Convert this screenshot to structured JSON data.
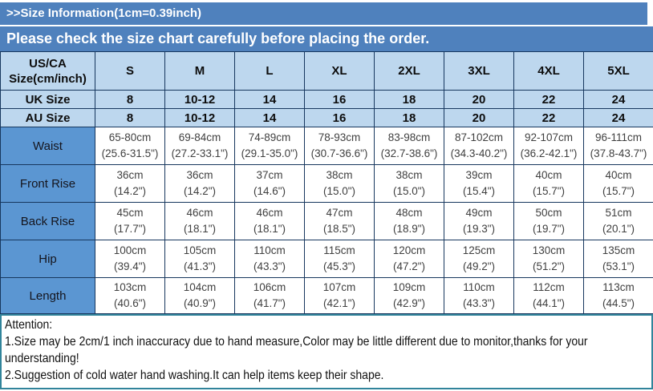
{
  "banner": {
    "title": ">>Size Information(1cm=0.39inch)",
    "subtitle": "Please check the size chart carefully before placing the order."
  },
  "table": {
    "corner_header": [
      "US/CA",
      "Size(cm/inch)"
    ],
    "size_headers": [
      "S",
      "M",
      "L",
      "XL",
      "2XL",
      "3XL",
      "4XL",
      "5XL"
    ],
    "size_rows": [
      {
        "label": "UK Size",
        "values": [
          "8",
          "10-12",
          "14",
          "16",
          "18",
          "20",
          "22",
          "24"
        ]
      },
      {
        "label": "AU Size",
        "values": [
          "8",
          "10-12",
          "14",
          "16",
          "18",
          "20",
          "22",
          "24"
        ]
      }
    ],
    "measurement_rows": [
      {
        "label": "Waist",
        "cm": [
          "65-80cm",
          "69-84cm",
          "74-89cm",
          "78-93cm",
          "83-98cm",
          "87-102cm",
          "92-107cm",
          "96-111cm"
        ],
        "inch": [
          "(25.6-31.5\")",
          "(27.2-33.1\")",
          "(29.1-35.0\")",
          "(30.7-36.6\")",
          "(32.7-38.6\")",
          "(34.3-40.2\")",
          "(36.2-42.1\")",
          "(37.8-43.7\")"
        ]
      },
      {
        "label": "Front Rise",
        "cm": [
          "36cm",
          "36cm",
          "37cm",
          "38cm",
          "38cm",
          "39cm",
          "40cm",
          "40cm"
        ],
        "inch": [
          "(14.2\")",
          "(14.2\")",
          "(14.6\")",
          "(15.0\")",
          "(15.0\")",
          "(15.4\")",
          "(15.7\")",
          "(15.7\")"
        ]
      },
      {
        "label": "Back Rise",
        "cm": [
          "45cm",
          "46cm",
          "46cm",
          "47cm",
          "48cm",
          "49cm",
          "50cm",
          "51cm"
        ],
        "inch": [
          "(17.7\")",
          "(18.1\")",
          "(18.1\")",
          "(18.5\")",
          "(18.9\")",
          "(19.3\")",
          "(19.7\")",
          "(20.1\")"
        ]
      },
      {
        "label": "Hip",
        "cm": [
          "100cm",
          "105cm",
          "110cm",
          "115cm",
          "120cm",
          "125cm",
          "130cm",
          "135cm"
        ],
        "inch": [
          "(39.4\")",
          "(41.3\")",
          "(43.3\")",
          "(45.3\")",
          "(47.2\")",
          "(49.2\")",
          "(51.2\")",
          "(53.1\")"
        ]
      },
      {
        "label": "Length",
        "cm": [
          "103cm",
          "104cm",
          "106cm",
          "107cm",
          "109cm",
          "110cm",
          "112cm",
          "113cm"
        ],
        "inch": [
          "(40.6\")",
          "(40.9\")",
          "(41.7\")",
          "(42.1\")",
          "(42.9\")",
          "(43.3\")",
          "(44.1\")",
          "(44.5\")"
        ]
      }
    ]
  },
  "attention": {
    "title": "Attention:",
    "notes": [
      "1.Size may be 2cm/1 inch inaccuracy due to hand measure,Color may be little different due to monitor,thanks for your understanding!",
      "2.Suggestion of cold water hand washing.It can help items keep their shape."
    ]
  },
  "colors": {
    "banner_blue": "#4f81bd",
    "header_light_blue": "#bdd7ee",
    "label_blue": "#5b96d2",
    "table_border": "#17375e",
    "attention_border": "#31849b"
  }
}
